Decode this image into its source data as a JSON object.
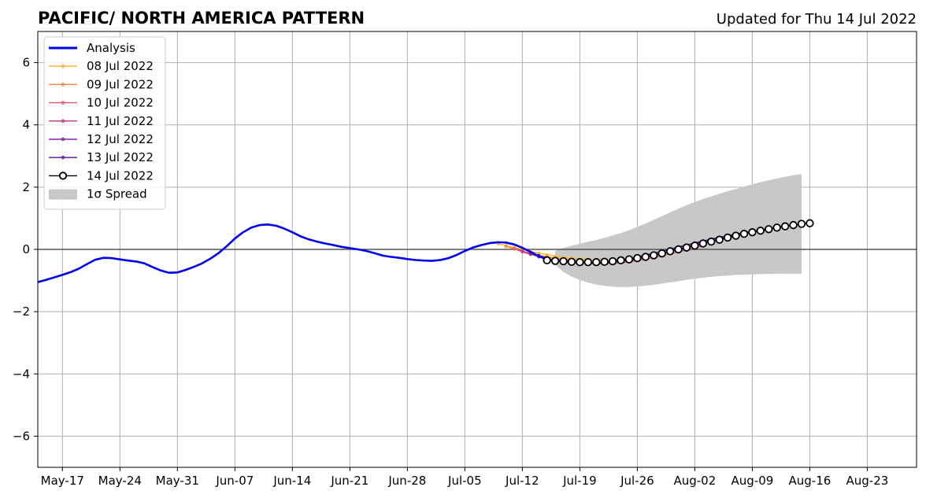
{
  "chart_data": {
    "type": "line",
    "title": "PACIFIC/ NORTH AMERICA PATTERN",
    "subtitle": "Updated for Thu 14 Jul 2022",
    "xlim": [
      "2022-05-14",
      "2022-08-29"
    ],
    "ylim": [
      -7,
      7
    ],
    "x_ticks": [
      {
        "date": "2022-05-17",
        "label": "May-17"
      },
      {
        "date": "2022-05-24",
        "label": "May-24"
      },
      {
        "date": "2022-05-31",
        "label": "May-31"
      },
      {
        "date": "2022-06-07",
        "label": "Jun-07"
      },
      {
        "date": "2022-06-14",
        "label": "Jun-14"
      },
      {
        "date": "2022-06-21",
        "label": "Jun-21"
      },
      {
        "date": "2022-06-28",
        "label": "Jun-28"
      },
      {
        "date": "2022-07-05",
        "label": "Jul-05"
      },
      {
        "date": "2022-07-12",
        "label": "Jul-12"
      },
      {
        "date": "2022-07-19",
        "label": "Jul-19"
      },
      {
        "date": "2022-07-26",
        "label": "Jul-26"
      },
      {
        "date": "2022-08-02",
        "label": "Aug-02"
      },
      {
        "date": "2022-08-09",
        "label": "Aug-09"
      },
      {
        "date": "2022-08-16",
        "label": "Aug-16"
      },
      {
        "date": "2022-08-23",
        "label": "Aug-23"
      }
    ],
    "y_ticks": [
      {
        "value": -6,
        "label": "−6"
      },
      {
        "value": -4,
        "label": "−4"
      },
      {
        "value": -2,
        "label": "−2"
      },
      {
        "value": 0,
        "label": "0"
      },
      {
        "value": 2,
        "label": "2"
      },
      {
        "value": 4,
        "label": "4"
      },
      {
        "value": 6,
        "label": "6"
      }
    ],
    "grid": true,
    "legend_position": "top-left",
    "zero_line": 0,
    "analysis": {
      "name": "Analysis",
      "color": "#0000ee",
      "points": [
        [
          "2022-05-14",
          -1.05
        ],
        [
          "2022-05-15",
          -0.98
        ],
        [
          "2022-05-16",
          -0.9
        ],
        [
          "2022-05-17",
          -0.82
        ],
        [
          "2022-05-18",
          -0.73
        ],
        [
          "2022-05-19",
          -0.62
        ],
        [
          "2022-05-20",
          -0.47
        ],
        [
          "2022-05-21",
          -0.33
        ],
        [
          "2022-05-22",
          -0.27
        ],
        [
          "2022-05-23",
          -0.28
        ],
        [
          "2022-05-24",
          -0.32
        ],
        [
          "2022-05-25",
          -0.36
        ],
        [
          "2022-05-26",
          -0.39
        ],
        [
          "2022-05-27",
          -0.45
        ],
        [
          "2022-05-28",
          -0.57
        ],
        [
          "2022-05-29",
          -0.68
        ],
        [
          "2022-05-30",
          -0.75
        ],
        [
          "2022-05-31",
          -0.74
        ],
        [
          "2022-06-01",
          -0.66
        ],
        [
          "2022-06-02",
          -0.56
        ],
        [
          "2022-06-03",
          -0.45
        ],
        [
          "2022-06-04",
          -0.3
        ],
        [
          "2022-06-05",
          -0.12
        ],
        [
          "2022-06-06",
          0.1
        ],
        [
          "2022-06-07",
          0.35
        ],
        [
          "2022-06-08",
          0.55
        ],
        [
          "2022-06-09",
          0.7
        ],
        [
          "2022-06-10",
          0.78
        ],
        [
          "2022-06-11",
          0.8
        ],
        [
          "2022-06-12",
          0.76
        ],
        [
          "2022-06-13",
          0.67
        ],
        [
          "2022-06-14",
          0.55
        ],
        [
          "2022-06-15",
          0.42
        ],
        [
          "2022-06-16",
          0.32
        ],
        [
          "2022-06-17",
          0.25
        ],
        [
          "2022-06-18",
          0.19
        ],
        [
          "2022-06-19",
          0.14
        ],
        [
          "2022-06-20",
          0.08
        ],
        [
          "2022-06-21",
          0.04
        ],
        [
          "2022-06-22",
          0.0
        ],
        [
          "2022-06-23",
          -0.05
        ],
        [
          "2022-06-24",
          -0.12
        ],
        [
          "2022-06-25",
          -0.2
        ],
        [
          "2022-06-26",
          -0.24
        ],
        [
          "2022-06-27",
          -0.27
        ],
        [
          "2022-06-28",
          -0.31
        ],
        [
          "2022-06-29",
          -0.34
        ],
        [
          "2022-06-30",
          -0.36
        ],
        [
          "2022-07-01",
          -0.37
        ],
        [
          "2022-07-02",
          -0.34
        ],
        [
          "2022-07-03",
          -0.28
        ],
        [
          "2022-07-04",
          -0.18
        ],
        [
          "2022-07-05",
          -0.05
        ],
        [
          "2022-07-06",
          0.06
        ],
        [
          "2022-07-07",
          0.14
        ],
        [
          "2022-07-08",
          0.2
        ],
        [
          "2022-07-09",
          0.23
        ],
        [
          "2022-07-10",
          0.22
        ],
        [
          "2022-07-11",
          0.16
        ],
        [
          "2022-07-12",
          0.05
        ],
        [
          "2022-07-13",
          -0.08
        ],
        [
          "2022-07-14",
          -0.22
        ],
        [
          "2022-07-15",
          -0.32
        ]
      ]
    },
    "spread": {
      "name": "1σ Spread",
      "color": "#c8c8c8",
      "points": [
        [
          "2022-07-16",
          -0.05,
          -0.5
        ],
        [
          "2022-07-17",
          0.05,
          -0.72
        ],
        [
          "2022-07-18",
          0.12,
          -0.88
        ],
        [
          "2022-07-19",
          0.18,
          -0.98
        ],
        [
          "2022-07-20",
          0.25,
          -1.07
        ],
        [
          "2022-07-21",
          0.3,
          -1.13
        ],
        [
          "2022-07-22",
          0.37,
          -1.17
        ],
        [
          "2022-07-23",
          0.45,
          -1.2
        ],
        [
          "2022-07-24",
          0.52,
          -1.21
        ],
        [
          "2022-07-25",
          0.62,
          -1.21
        ],
        [
          "2022-07-26",
          0.72,
          -1.19
        ],
        [
          "2022-07-27",
          0.83,
          -1.17
        ],
        [
          "2022-07-28",
          0.95,
          -1.14
        ],
        [
          "2022-07-29",
          1.07,
          -1.1
        ],
        [
          "2022-07-30",
          1.19,
          -1.06
        ],
        [
          "2022-07-31",
          1.31,
          -1.02
        ],
        [
          "2022-08-01",
          1.42,
          -0.98
        ],
        [
          "2022-08-02",
          1.52,
          -0.94
        ],
        [
          "2022-08-03",
          1.62,
          -0.91
        ],
        [
          "2022-08-04",
          1.7,
          -0.88
        ],
        [
          "2022-08-05",
          1.79,
          -0.86
        ],
        [
          "2022-08-06",
          1.87,
          -0.84
        ],
        [
          "2022-08-07",
          1.94,
          -0.82
        ],
        [
          "2022-08-08",
          2.02,
          -0.81
        ],
        [
          "2022-08-09",
          2.09,
          -0.8
        ],
        [
          "2022-08-10",
          2.16,
          -0.79
        ],
        [
          "2022-08-11",
          2.22,
          -0.79
        ],
        [
          "2022-08-12",
          2.28,
          -0.78
        ],
        [
          "2022-08-13",
          2.33,
          -0.78
        ],
        [
          "2022-08-14",
          2.38,
          -0.78
        ],
        [
          "2022-08-15",
          2.42,
          -0.78
        ]
      ]
    },
    "forecasts": [
      {
        "name": "08 Jul 2022",
        "color": "#fcb42e",
        "start": "2022-07-09",
        "values": [
          0.18,
          0.12,
          0.06,
          0.0,
          -0.06,
          -0.12,
          -0.17,
          -0.22,
          -0.25,
          -0.28,
          -0.3,
          -0.32,
          -0.33,
          -0.34
        ]
      },
      {
        "name": "09 Jul 2022",
        "color": "#f3843f",
        "start": "2022-07-10",
        "values": [
          0.1,
          0.02,
          -0.06,
          -0.13,
          -0.19,
          -0.24,
          -0.28,
          -0.32,
          -0.35,
          -0.37,
          -0.39,
          -0.4,
          -0.4,
          -0.39
        ]
      },
      {
        "name": "10 Jul 2022",
        "color": "#e0566a",
        "start": "2022-07-11",
        "values": [
          0.02,
          -0.08,
          -0.16,
          -0.23,
          -0.3,
          -0.35,
          -0.39,
          -0.42,
          -0.44,
          -0.45,
          -0.46,
          -0.46,
          -0.45,
          -0.43,
          -0.4,
          -0.36,
          -0.31,
          -0.26,
          -0.2,
          -0.14,
          -0.08,
          -0.02,
          0.05,
          0.12
        ]
      },
      {
        "name": "11 Jul 2022",
        "color": "#b8348f",
        "start": "2022-07-12",
        "values": [
          -0.05,
          -0.15,
          -0.24,
          -0.31,
          -0.36,
          -0.4,
          -0.43,
          -0.45,
          -0.46,
          -0.46,
          -0.45,
          -0.43,
          -0.4,
          -0.36,
          -0.31,
          -0.25,
          -0.19,
          -0.13,
          -0.06,
          0.01,
          0.08,
          0.15,
          0.22,
          0.28,
          0.34,
          0.4,
          0.46,
          0.51,
          0.56,
          0.6
        ]
      },
      {
        "name": "12 Jul 2022",
        "color": "#8a1fa8",
        "start": "2022-07-13",
        "values": [
          -0.12,
          -0.22,
          -0.3,
          -0.36,
          -0.4,
          -0.43,
          -0.44,
          -0.45,
          -0.44,
          -0.42,
          -0.39,
          -0.35,
          -0.3,
          -0.25,
          -0.19,
          -0.13,
          -0.07,
          0.0,
          0.06,
          0.13,
          0.19,
          0.25,
          0.31,
          0.37,
          0.42,
          0.47,
          0.52,
          0.56,
          0.6,
          0.64
        ]
      },
      {
        "name": "13 Jul 2022",
        "color": "#5a0e9e",
        "start": "2022-07-14",
        "values": [
          -0.2,
          -0.28,
          -0.34,
          -0.38,
          -0.41,
          -0.43,
          -0.43,
          -0.42,
          -0.4,
          -0.37,
          -0.33,
          -0.29,
          -0.24,
          -0.18,
          -0.12,
          -0.06,
          0.01,
          0.08,
          0.14,
          0.21,
          0.27,
          0.33,
          0.39,
          0.44,
          0.49,
          0.54,
          0.58,
          0.62,
          0.66,
          0.7
        ]
      },
      {
        "name": "14 Jul 2022",
        "color": "#000000",
        "start": "2022-07-15",
        "markers": "open-circle",
        "values": [
          -0.35,
          -0.37,
          -0.38,
          -0.4,
          -0.41,
          -0.41,
          -0.41,
          -0.4,
          -0.38,
          -0.35,
          -0.32,
          -0.28,
          -0.24,
          -0.19,
          -0.13,
          -0.06,
          0.0,
          0.06,
          0.12,
          0.19,
          0.25,
          0.31,
          0.38,
          0.44,
          0.5,
          0.55,
          0.6,
          0.65,
          0.7,
          0.74,
          0.78,
          0.82,
          0.84
        ]
      }
    ],
    "legend": [
      {
        "label": "Analysis",
        "color": "#0000ee",
        "kind": "line"
      },
      {
        "label": "08 Jul 2022",
        "color": "#fcb42e",
        "kind": "line-dot"
      },
      {
        "label": "09 Jul 2022",
        "color": "#f3843f",
        "kind": "line-dot"
      },
      {
        "label": "10 Jul 2022",
        "color": "#e0566a",
        "kind": "line-dot"
      },
      {
        "label": "11 Jul 2022",
        "color": "#b8348f",
        "kind": "line-dot"
      },
      {
        "label": "12 Jul 2022",
        "color": "#8a1fa8",
        "kind": "line-dot"
      },
      {
        "label": "13 Jul 2022",
        "color": "#5a0e9e",
        "kind": "line-dot"
      },
      {
        "label": "14 Jul 2022",
        "color": "#000000",
        "kind": "line-circle"
      },
      {
        "label": "1σ Spread",
        "color": "#c8c8c8",
        "kind": "patch"
      }
    ]
  }
}
